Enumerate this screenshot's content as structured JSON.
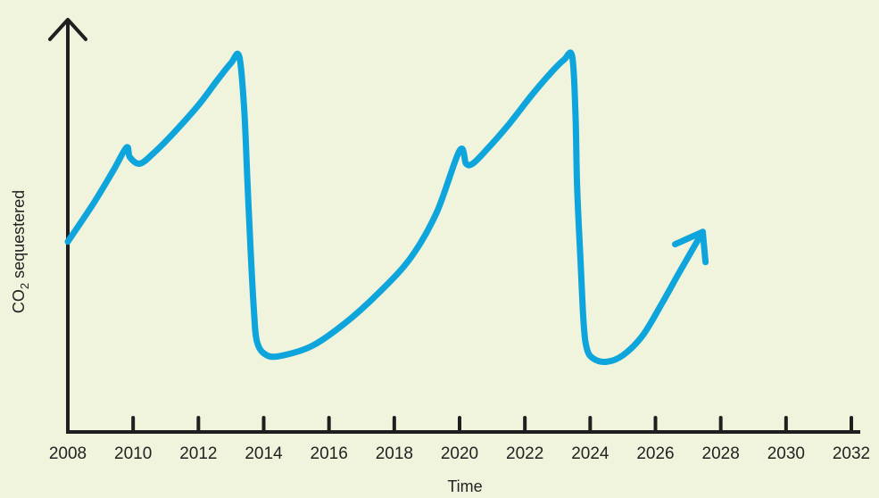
{
  "chart_data": {
    "type": "line",
    "title": "",
    "xlabel": "Time",
    "ylabel_main": "CO",
    "ylabel_sub": "2",
    "ylabel_rest": " sequestered",
    "xlim": [
      2008,
      2032
    ],
    "ylim": [
      0,
      100
    ],
    "y_ticks_shown": false,
    "x_ticks": [
      2008,
      2010,
      2012,
      2014,
      2016,
      2018,
      2020,
      2022,
      2024,
      2026,
      2028,
      2030,
      2032
    ],
    "grid": false,
    "legend": "none",
    "colors": {
      "background": "#f0f4dc",
      "axis": "#1f1f1f",
      "series": "#0ea5dc"
    },
    "series": [
      {
        "x": [
          2008.0,
          2008.8,
          2009.4,
          2009.8,
          2009.9,
          2010.2,
          2010.6,
          2011.2,
          2012.0,
          2012.6,
          2013.0,
          2013.25,
          2013.4,
          2013.5,
          2013.6,
          2013.7,
          2013.8,
          2014.1,
          2014.6,
          2015.5,
          2016.5,
          2017.5,
          2018.5,
          2019.3,
          2020.0,
          2020.2,
          2020.4,
          2020.8,
          2021.5,
          2022.2,
          2022.8,
          2023.2,
          2023.45,
          2023.55,
          2023.6,
          2023.7,
          2023.8,
          2023.9,
          2024.1,
          2024.5,
          2025.0,
          2025.6,
          2026.2,
          2026.7,
          2027.1,
          2027.45
        ],
        "y": [
          41,
          53,
          63,
          70,
          67,
          65,
          68,
          74,
          83,
          91,
          96,
          98,
          82,
          60,
          38,
          20,
          10,
          6,
          6,
          9,
          16,
          25,
          36,
          50,
          69,
          65,
          65,
          69,
          77,
          86,
          93,
          97,
          98,
          80,
          58,
          36,
          16,
          8,
          5,
          4,
          6,
          12,
          22,
          31,
          38,
          44
        ]
      }
    ],
    "arrow_at_end": true
  }
}
